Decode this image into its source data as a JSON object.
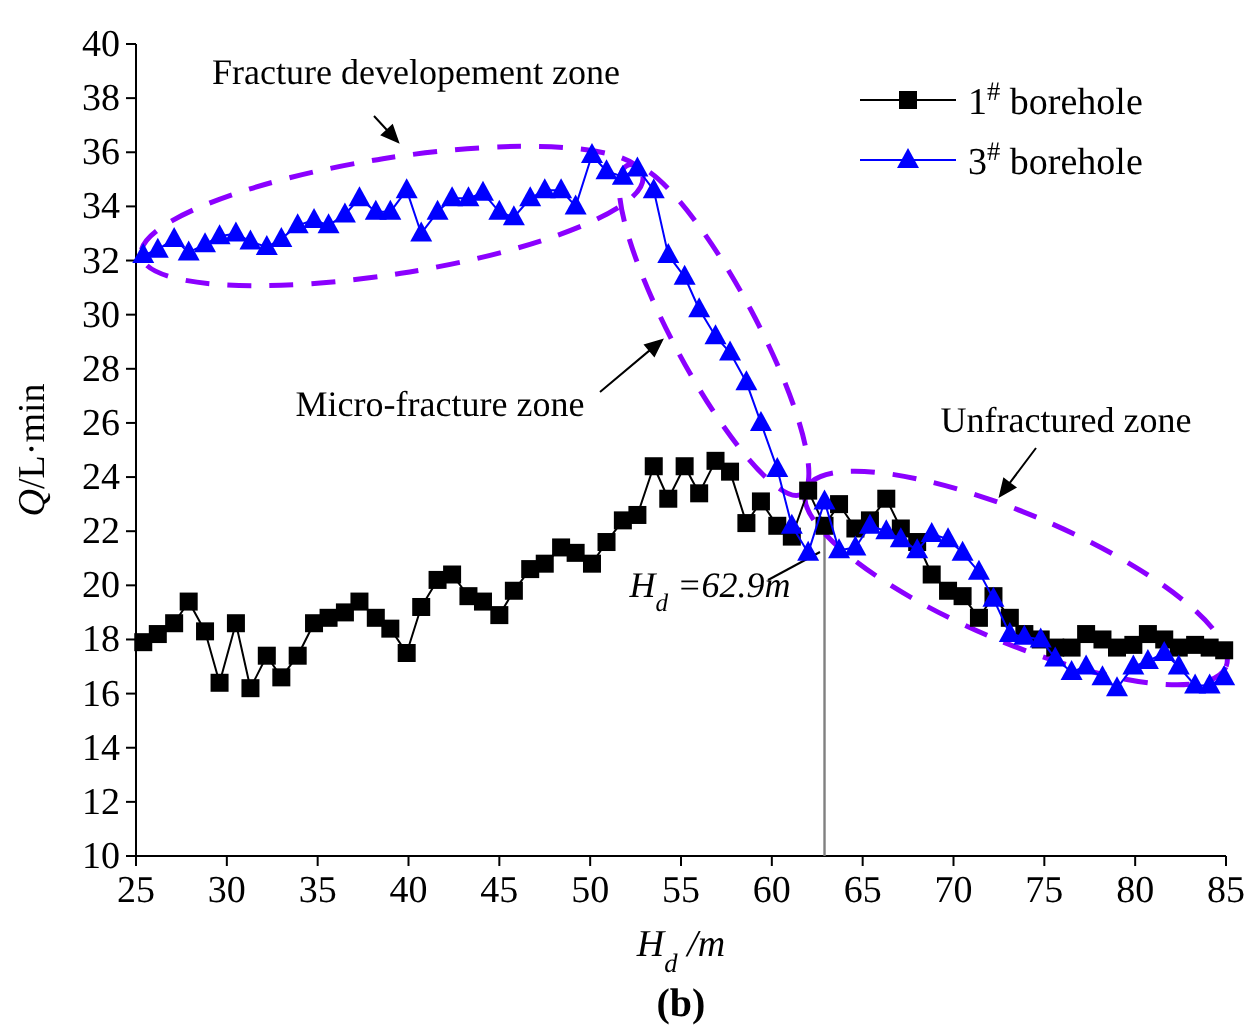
{
  "chart_data": {
    "type": "line",
    "title": "(b)",
    "xlabel": "H$_{d}$/m",
    "ylabel": "Q/L·min",
    "x": [
      25.4,
      26.2,
      27.1,
      27.9,
      28.8,
      29.6,
      30.5,
      31.3,
      32.2,
      33.0,
      33.9,
      34.8,
      35.6,
      36.5,
      37.3,
      38.2,
      39.0,
      39.9,
      40.7,
      41.6,
      42.4,
      43.3,
      44.1,
      45.0,
      45.8,
      46.7,
      47.5,
      48.4,
      49.2,
      50.1,
      50.9,
      51.8,
      52.6,
      53.5,
      54.3,
      55.2,
      56.0,
      56.9,
      57.7,
      58.6,
      59.4,
      60.3,
      61.1,
      62.0,
      62.9,
      63.7,
      64.6,
      65.4,
      66.3,
      67.1,
      68.0,
      68.8,
      69.7,
      70.5,
      71.4,
      72.2,
      73.1,
      73.9,
      74.8,
      75.6,
      76.5,
      77.3,
      78.2,
      79.0,
      79.9,
      80.7,
      81.6,
      82.4,
      83.3,
      84.1,
      84.9
    ],
    "series": [
      {
        "name": "1$^{#}$ borehole",
        "color": "#000000",
        "marker": "square",
        "values": [
          17.9,
          18.2,
          18.6,
          19.4,
          18.3,
          16.4,
          18.6,
          16.2,
          17.4,
          16.6,
          17.4,
          18.6,
          18.8,
          19.0,
          19.4,
          18.8,
          18.4,
          17.5,
          19.2,
          20.2,
          20.4,
          19.6,
          19.4,
          18.9,
          19.8,
          20.6,
          20.8,
          21.4,
          21.2,
          20.8,
          21.6,
          22.4,
          22.6,
          24.4,
          23.2,
          24.4,
          23.4,
          24.6,
          24.2,
          22.3,
          23.1,
          22.2,
          21.8,
          23.5,
          22.2,
          23.0,
          22.1,
          22.4,
          23.2,
          22.1,
          21.6,
          20.4,
          19.8,
          19.6,
          18.8,
          19.6,
          18.8,
          18.2,
          18.0,
          17.7,
          17.7,
          18.2,
          18.0,
          17.7,
          17.8,
          18.2,
          18.0,
          17.7,
          17.8,
          17.7,
          17.6
        ]
      },
      {
        "name": "3$^{#}$ borehole",
        "color": "#0000ff",
        "marker": "triangle",
        "values": [
          32.2,
          32.4,
          32.8,
          32.3,
          32.6,
          32.9,
          33.0,
          32.7,
          32.5,
          32.8,
          33.3,
          33.5,
          33.3,
          33.7,
          34.3,
          33.8,
          33.8,
          34.6,
          33.0,
          33.8,
          34.3,
          34.3,
          34.5,
          33.8,
          33.6,
          34.3,
          34.6,
          34.6,
          34.0,
          35.9,
          35.3,
          35.1,
          35.4,
          34.6,
          32.2,
          31.4,
          30.2,
          29.2,
          28.6,
          27.5,
          26.0,
          24.3,
          22.2,
          21.2,
          23.1,
          21.3,
          21.4,
          22.2,
          22.0,
          21.7,
          21.3,
          21.9,
          21.7,
          21.2,
          20.5,
          19.5,
          18.2,
          18.1,
          18.0,
          17.3,
          16.8,
          17.0,
          16.6,
          16.2,
          17.0,
          17.2,
          17.5,
          17.0,
          16.3,
          16.3,
          16.6
        ]
      }
    ],
    "xlim": [
      25,
      85
    ],
    "xticks": [
      25,
      30,
      35,
      40,
      45,
      50,
      55,
      60,
      65,
      70,
      75,
      80,
      85
    ],
    "ylim": [
      10,
      40
    ],
    "yticks": [
      10,
      12,
      14,
      16,
      18,
      20,
      22,
      24,
      26,
      28,
      30,
      32,
      34,
      36,
      38,
      40
    ],
    "ref_lines": [
      {
        "axis": "x",
        "value": 62.9,
        "label": "H$_{d}$=62.9m",
        "color": "#808080"
      }
    ],
    "annotations": [
      "Fracture developement zone",
      "Micro-fracture zone",
      "Unfractured zone"
    ],
    "legend": "top right",
    "grid": false,
    "line_style": "solid"
  }
}
